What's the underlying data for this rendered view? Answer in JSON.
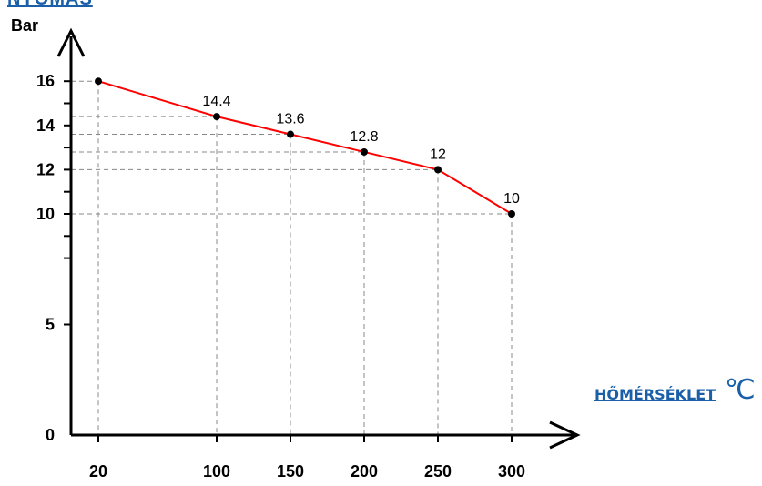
{
  "chart_data": {
    "type": "line",
    "title": "NYOMÁS",
    "ylabel": "Bar",
    "xlabel": "HŐMÉRSÉKLET",
    "xunit": "℃",
    "x": [
      20,
      100,
      150,
      200,
      250,
      300
    ],
    "series": [
      {
        "values": [
          16,
          14.4,
          13.6,
          12.8,
          12,
          10
        ]
      }
    ],
    "data_labels": [
      "",
      "14.4",
      "13.6",
      "12.8",
      "12",
      "10"
    ],
    "x_ticks": [
      "20",
      "100",
      "150",
      "200",
      "250",
      "300"
    ],
    "y_ticks": [
      "0",
      "5",
      "10",
      "12",
      "14",
      "16"
    ],
    "y_tick_values": [
      0,
      5,
      10,
      12,
      14,
      16
    ],
    "ylim": [
      0,
      16
    ],
    "grid": false,
    "dashed_guides": true,
    "colors": {
      "line": "#ff0000",
      "point": "#000000",
      "guide": "#888888",
      "label_accent": "#1a5fa8"
    }
  }
}
